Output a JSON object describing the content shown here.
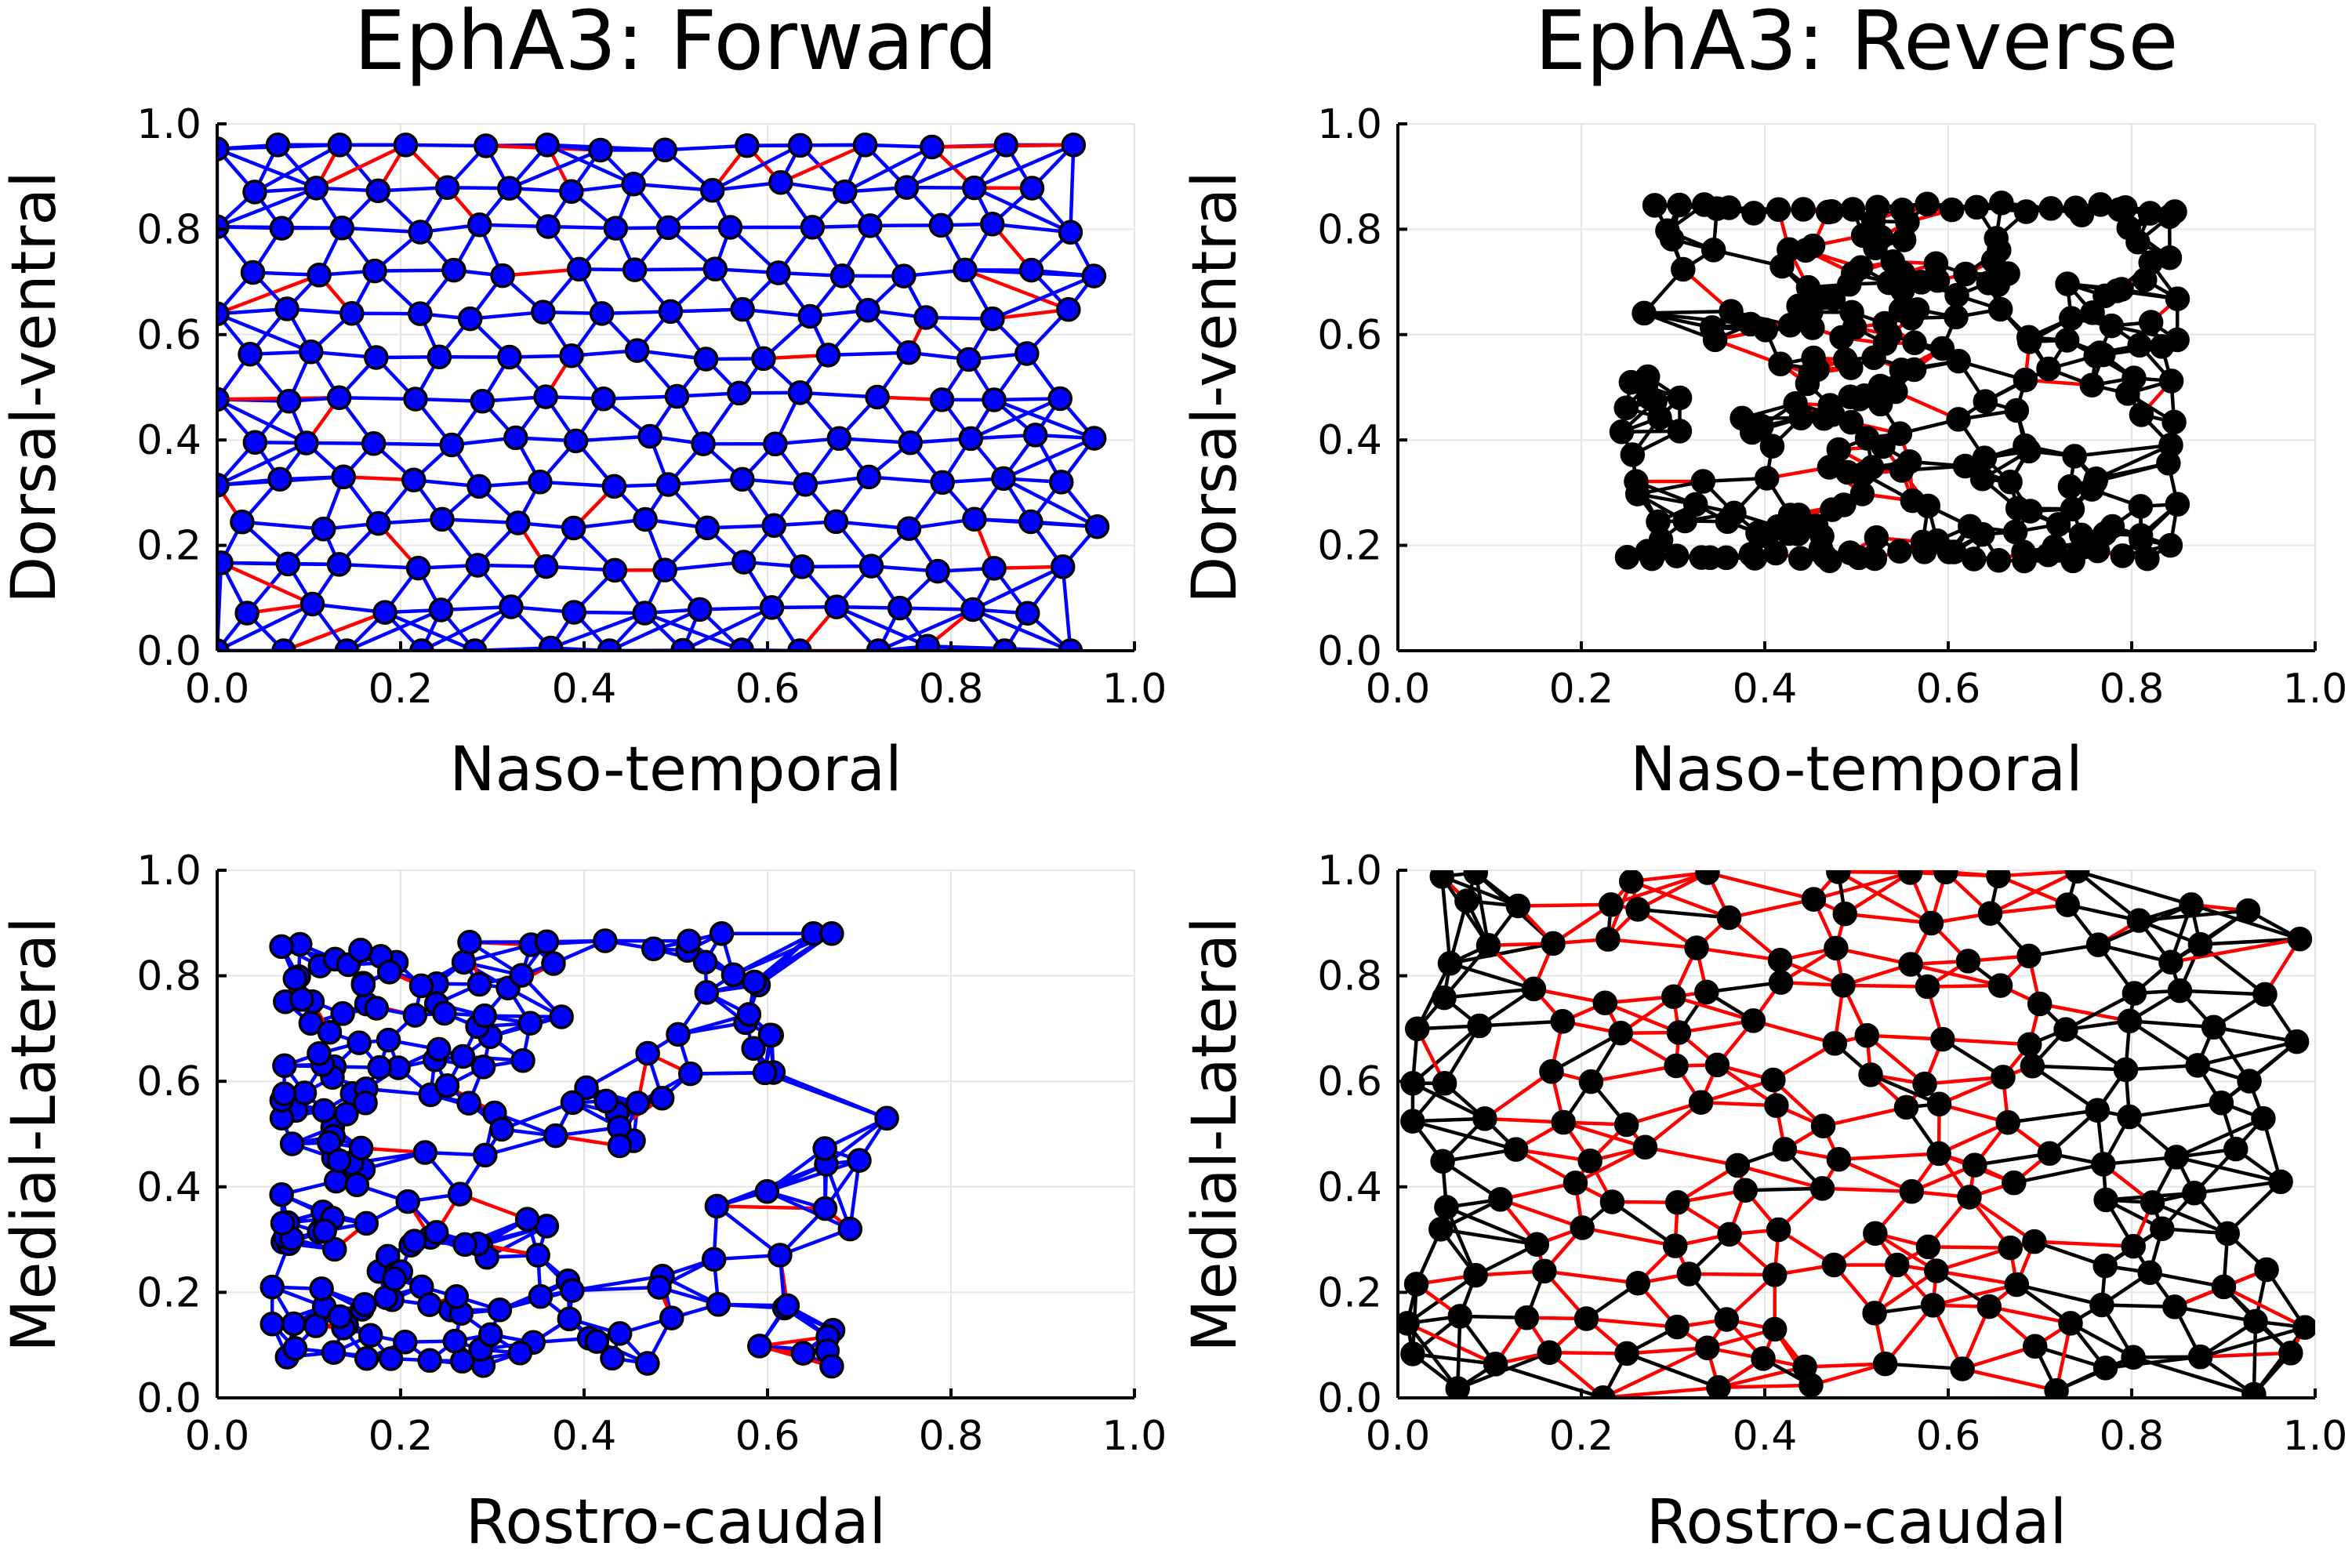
{
  "colors": {
    "forward_node": "#0000ff",
    "forward_edge": "#0000ff",
    "reverse_node": "#000000",
    "reverse_edge": "#000000",
    "flipped_edge": "#ff0000",
    "grid": "#e6e6e6"
  },
  "chart_data": [
    {
      "id": "retina-forward",
      "type": "scatter",
      "title": "EphA3: Forward",
      "xlabel": "Naso-temporal",
      "ylabel": "Dorsal-ventral",
      "xlim": [
        0,
        1
      ],
      "ylim": [
        0,
        1
      ],
      "xticks": [
        "0.0",
        "0.2",
        "0.4",
        "0.6",
        "0.8",
        "1.0"
      ],
      "yticks": [
        "0.0",
        "0.2",
        "0.4",
        "0.6",
        "0.8",
        "1.0"
      ],
      "grid": true,
      "legend": "none",
      "node_color": "#0000ff",
      "edge_color": "#0000ff",
      "flipped_edge_color": "#ff0000",
      "pattern": "jittered-grid",
      "region": [
        0.0,
        0.96,
        0.0,
        0.96
      ],
      "node_count": 180,
      "seed": 11
    },
    {
      "id": "retina-reverse",
      "type": "scatter",
      "title": "EphA3: Reverse",
      "xlabel": "Naso-temporal",
      "ylabel": "Dorsal-ventral",
      "xlim": [
        0,
        1
      ],
      "ylim": [
        0,
        1
      ],
      "xticks": [
        "0.0",
        "0.2",
        "0.4",
        "0.6",
        "0.8",
        "1.0"
      ],
      "yticks": [
        "0.0",
        "0.2",
        "0.4",
        "0.6",
        "0.8",
        "1.0"
      ],
      "grid": true,
      "legend": "none",
      "node_color": "#000000",
      "edge_color": "#000000",
      "flipped_edge_color": "#ff0000",
      "pattern": "folded-quad",
      "region": [
        0.21,
        0.87,
        0.16,
        0.86
      ],
      "node_count": 210,
      "seed": 23
    },
    {
      "id": "colliculus-forward",
      "type": "scatter",
      "title": "",
      "xlabel": "Rostro-caudal",
      "ylabel": "Medial-Lateral",
      "xlim": [
        0,
        1
      ],
      "ylim": [
        0,
        1
      ],
      "xticks": [
        "0.0",
        "0.2",
        "0.4",
        "0.6",
        "0.8",
        "1.0"
      ],
      "yticks": [
        "0.0",
        "0.2",
        "0.4",
        "0.6",
        "0.8",
        "1.0"
      ],
      "grid": true,
      "legend": "none",
      "node_color": "#0000ff",
      "edge_color": "#0000ff",
      "flipped_edge_color": "#ff0000",
      "pattern": "clustered-quad",
      "region": [
        0.05,
        0.73,
        0.05,
        0.89
      ],
      "node_count": 200,
      "seed": 37
    },
    {
      "id": "colliculus-reverse",
      "type": "scatter",
      "title": "",
      "xlabel": "Rostro-caudal",
      "ylabel": "Medial-Lateral",
      "xlim": [
        0,
        1
      ],
      "ylim": [
        0,
        1
      ],
      "xticks": [
        "0.0",
        "0.2",
        "0.4",
        "0.6",
        "0.8",
        "1.0"
      ],
      "yticks": [
        "0.0",
        "0.2",
        "0.4",
        "0.6",
        "0.8",
        "1.0"
      ],
      "grid": true,
      "legend": "none",
      "node_color": "#000000",
      "edge_color": "#000000",
      "flipped_edge_color": "#ff0000",
      "pattern": "uniform-with-red-band",
      "region": [
        0.0,
        1.0,
        0.0,
        1.0
      ],
      "red_band_x": [
        0.12,
        0.7
      ],
      "node_count": 210,
      "seed": 53
    }
  ]
}
